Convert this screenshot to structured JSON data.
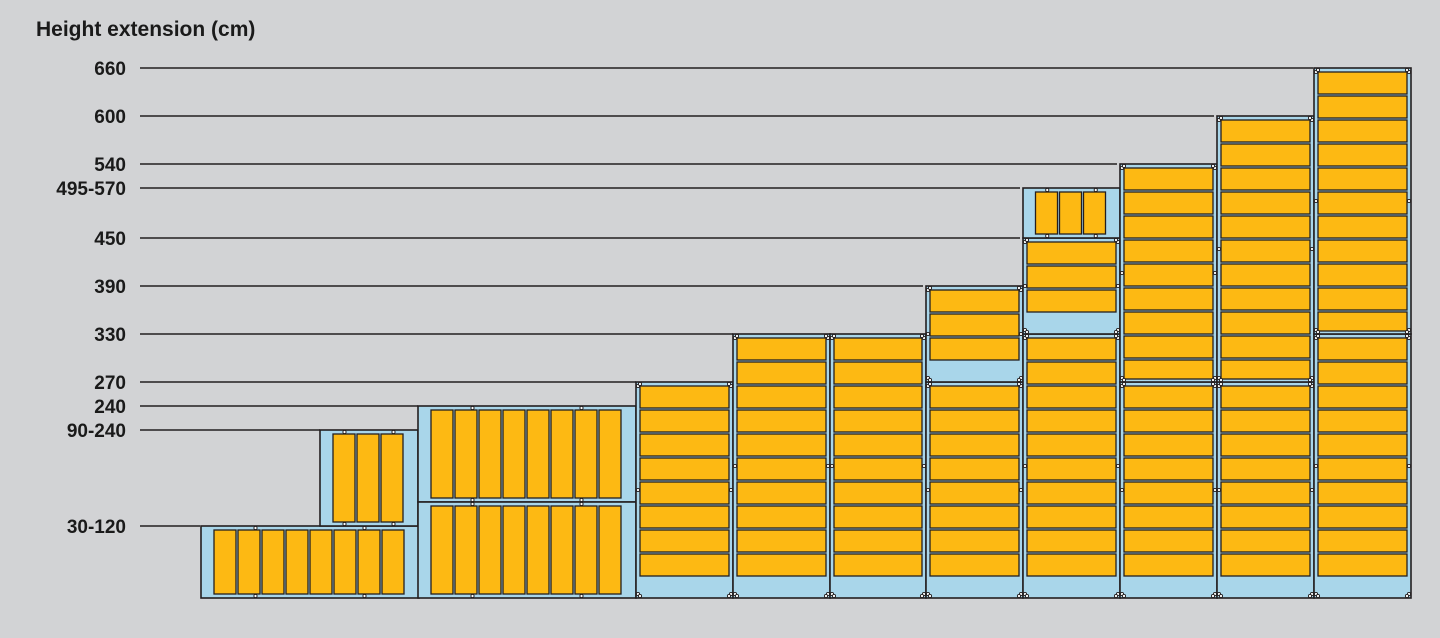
{
  "title": "Height extension (cm)",
  "colors": {
    "background": "#d2d3d5",
    "frame": "#a9d6ea",
    "panel": "#fdb913",
    "stroke": "#231f20"
  },
  "height_levels": [
    "660",
    "600",
    "540",
    "495-570",
    "450",
    "390",
    "330",
    "270",
    "240",
    "90-240",
    "30-120"
  ]
}
